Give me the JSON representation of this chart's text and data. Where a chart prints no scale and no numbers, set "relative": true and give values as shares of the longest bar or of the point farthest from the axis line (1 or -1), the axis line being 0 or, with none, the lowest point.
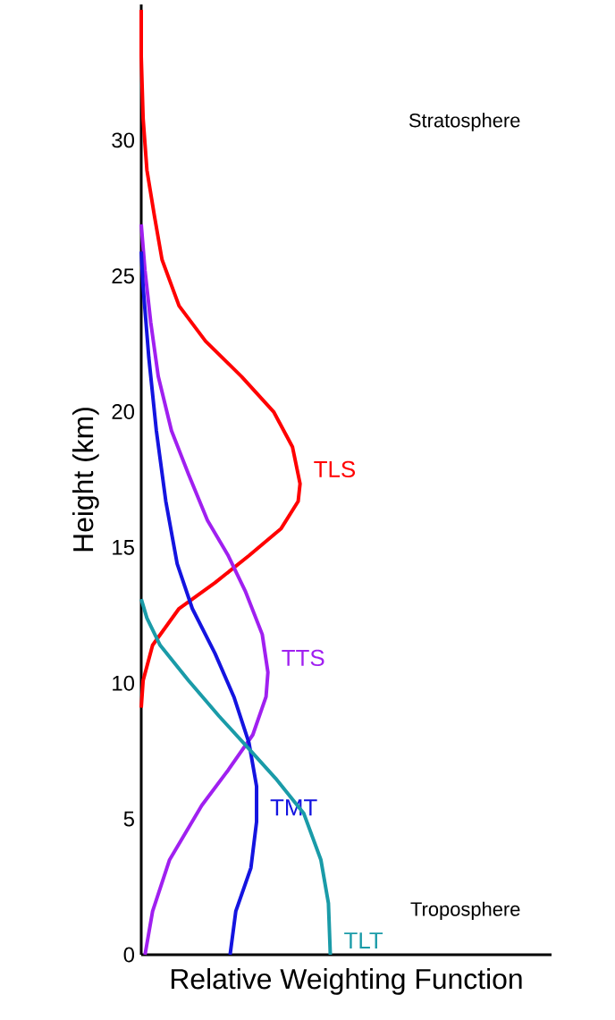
{
  "chart_data": {
    "type": "line",
    "orientation": "horizontal",
    "relative": true,
    "xlabel": "Relative Weighting Function",
    "ylabel": "Height (km)",
    "ylim": [
      0,
      35
    ],
    "yticks": [
      0,
      5,
      10,
      15,
      20,
      25,
      30
    ],
    "tick_labels": "y",
    "grid": false,
    "legend": false,
    "marker": "none",
    "line_style": "solid",
    "annotations": [
      "Stratosphere",
      "Troposphere"
    ],
    "series": [
      {
        "name": "TLS",
        "color": "#ff0000",
        "values": [
          0,
          0.01,
          0.06,
          0.2,
          0.39,
          0.57,
          0.74,
          0.83,
          0.84,
          0.8,
          0.7,
          0.53,
          0.34,
          0.2,
          0.11,
          0.07,
          0.03,
          0.01,
          0,
          0
        ],
        "x": [
          9.1,
          10.1,
          11.4,
          12.75,
          13.7,
          14.7,
          15.7,
          16.7,
          17.35,
          18.7,
          20.0,
          21.3,
          22.6,
          23.9,
          25.6,
          27.2,
          28.9,
          30.8,
          33.1,
          34.8
        ]
      },
      {
        "name": "TTS",
        "color": "#a020f0",
        "values": [
          0.02,
          0.06,
          0.15,
          0.32,
          0.46,
          0.59,
          0.66,
          0.67,
          0.64,
          0.55,
          0.46,
          0.35,
          0.25,
          0.16,
          0.09,
          0.05,
          0.02,
          0
        ],
        "x": [
          0,
          1.6,
          3.5,
          5.5,
          6.8,
          8.1,
          9.5,
          10.4,
          11.8,
          13.4,
          14.7,
          16.0,
          17.7,
          19.3,
          21.3,
          23.3,
          25.2,
          26.9
        ]
      },
      {
        "name": "TMT",
        "color": "#1414e0",
        "values": [
          0.47,
          0.5,
          0.58,
          0.61,
          0.61,
          0.57,
          0.49,
          0.39,
          0.27,
          0.19,
          0.13,
          0.08,
          0.04,
          0.01,
          0
        ],
        "x": [
          0,
          1.6,
          3.2,
          4.9,
          6.2,
          7.8,
          9.5,
          11.1,
          12.75,
          14.4,
          16.7,
          19.3,
          22.0,
          24.6,
          25.9
        ]
      },
      {
        "name": "TLT",
        "color": "#1a9ba8",
        "values": [
          1,
          0.99,
          0.95,
          0.86,
          0.71,
          0.58,
          0.41,
          0.25,
          0.1,
          0.03,
          0
        ],
        "x": [
          0,
          1.9,
          3.5,
          5.2,
          6.5,
          7.5,
          8.8,
          10.1,
          11.4,
          12.4,
          13.1
        ]
      }
    ]
  }
}
